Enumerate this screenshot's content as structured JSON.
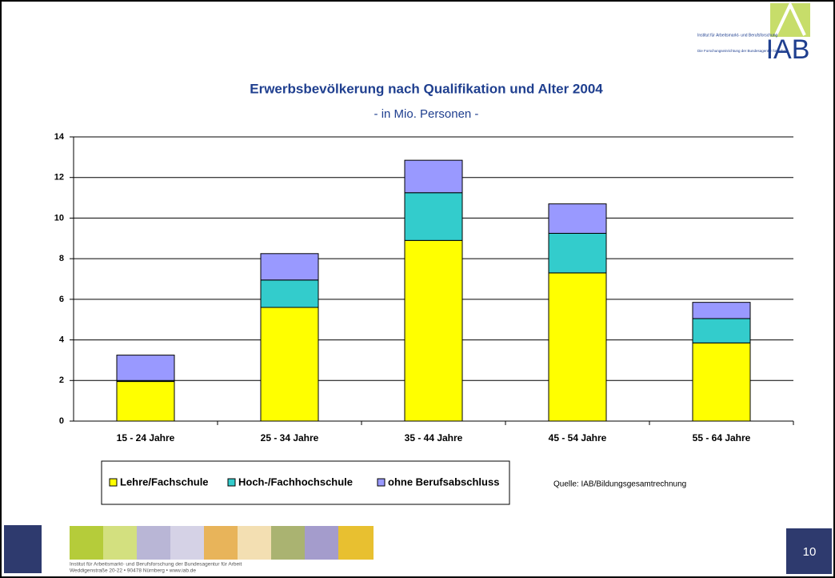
{
  "header": {
    "institute": "Institut für Arbeitsmarkt- und Berufsforschung",
    "subline": "Die Forschungseinrichtung der Bundesagentur für Arbeit",
    "logo": "IAB"
  },
  "chart_data": {
    "type": "stacked_bar",
    "title": "Erwerbsbevölkerung nach Qualifikation und Alter 2004",
    "subtitle": "- in Mio. Personen -",
    "categories": [
      "15 - 24 Jahre",
      "25 - 34 Jahre",
      "35 - 44 Jahre",
      "45 - 54 Jahre",
      "55 - 64 Jahre"
    ],
    "series": [
      {
        "name": "Lehre/Fachschule",
        "color": "#ffff00",
        "values": [
          1.95,
          5.6,
          8.9,
          7.3,
          3.85
        ]
      },
      {
        "name": "Hoch-/Fachhochschule",
        "color": "#33cccc",
        "values": [
          0.05,
          1.35,
          2.35,
          1.95,
          1.2
        ]
      },
      {
        "name": "ohne Berufsabschluss",
        "color": "#9999ff",
        "values": [
          1.25,
          1.3,
          1.6,
          1.45,
          0.8
        ]
      }
    ],
    "ylim": [
      0,
      14
    ],
    "yticks": [
      0,
      2,
      4,
      6,
      8,
      10,
      12,
      14
    ],
    "grid": true,
    "legend": "bottom"
  },
  "source": "Quelle: IAB/Bildungsgesamtrechnung",
  "footer": {
    "line1": "Institut für Arbeitsmarkt- und Berufsforschung der Bundesagentur für Arbeit",
    "line2": "Weddigenstraße 20-22 • 90478 Nürnberg • www.iab.de"
  },
  "page_number": "10"
}
